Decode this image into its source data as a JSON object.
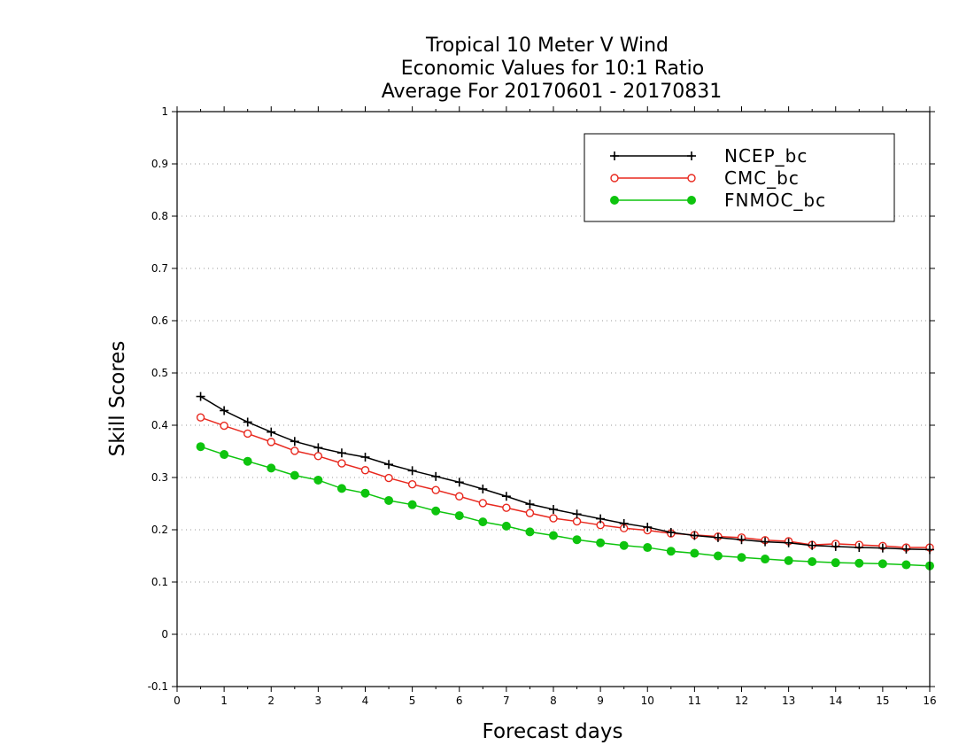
{
  "chart_data": {
    "type": "line",
    "title_lines": [
      "Tropical 10 Meter V Wind",
      "Economic Values for 10:1 Ratio",
      "Average For 20170601 - 20170831"
    ],
    "xlabel": "Forecast days",
    "ylabel": "Skill Scores",
    "xlim": [
      0,
      16
    ],
    "ylim": [
      -0.1,
      1
    ],
    "x_ticks": [
      0,
      1,
      2,
      3,
      4,
      5,
      6,
      7,
      8,
      9,
      10,
      11,
      12,
      13,
      14,
      15,
      16
    ],
    "x_tick_labels": [
      "0",
      "1",
      "2",
      "3",
      "4",
      "5",
      "6",
      "7",
      "8",
      "9",
      "10",
      "11",
      "12",
      "13",
      "14",
      "15",
      "16"
    ],
    "y_ticks": [
      -0.1,
      0,
      0.1,
      0.2,
      0.3,
      0.4,
      0.5,
      0.6,
      0.7,
      0.8,
      0.9,
      1
    ],
    "y_tick_labels": [
      "-0.1",
      "0",
      "0.1",
      "0.2",
      "0.3",
      "0.4",
      "0.5",
      "0.6",
      "0.7",
      "0.8",
      "0.9",
      "1"
    ],
    "grid": "horizontal dotted",
    "legend_position": "top-right",
    "x": [
      0.5,
      1,
      1.5,
      2,
      2.5,
      3,
      3.5,
      4,
      4.5,
      5,
      5.5,
      6,
      6.5,
      7,
      7.5,
      8,
      8.5,
      9,
      9.5,
      10,
      10.5,
      11,
      11.5,
      12,
      12.5,
      13,
      13.5,
      14,
      14.5,
      15,
      15.5,
      16
    ],
    "series": [
      {
        "name": "NCEP_bc",
        "color": "#000000",
        "marker": "plus",
        "values": [
          0.455,
          0.428,
          0.406,
          0.387,
          0.369,
          0.357,
          0.347,
          0.339,
          0.325,
          0.313,
          0.302,
          0.291,
          0.278,
          0.264,
          0.249,
          0.239,
          0.23,
          0.221,
          0.212,
          0.205,
          0.195,
          0.189,
          0.185,
          0.181,
          0.177,
          0.175,
          0.17,
          0.168,
          0.166,
          0.165,
          0.163,
          0.162
        ]
      },
      {
        "name": "CMC_bc",
        "color": "#e8281e",
        "marker": "open-circle",
        "values": [
          0.415,
          0.399,
          0.384,
          0.368,
          0.351,
          0.341,
          0.327,
          0.314,
          0.299,
          0.287,
          0.276,
          0.264,
          0.251,
          0.242,
          0.232,
          0.222,
          0.216,
          0.209,
          0.203,
          0.199,
          0.193,
          0.19,
          0.187,
          0.185,
          0.18,
          0.178,
          0.171,
          0.173,
          0.171,
          0.169,
          0.166,
          0.166
        ]
      },
      {
        "name": "FNMOC_bc",
        "color": "#0ec40e",
        "marker": "filled-circle",
        "values": [
          0.359,
          0.344,
          0.331,
          0.318,
          0.304,
          0.295,
          0.279,
          0.27,
          0.256,
          0.248,
          0.236,
          0.227,
          0.215,
          0.207,
          0.196,
          0.189,
          0.181,
          0.175,
          0.17,
          0.166,
          0.159,
          0.155,
          0.15,
          0.147,
          0.144,
          0.141,
          0.139,
          0.137,
          0.136,
          0.135,
          0.133,
          0.131
        ]
      }
    ]
  }
}
